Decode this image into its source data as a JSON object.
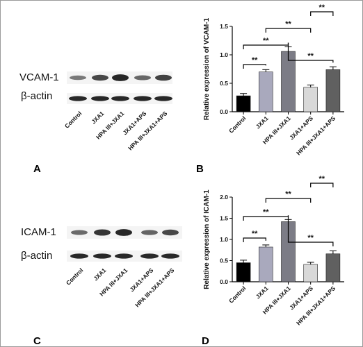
{
  "panels": {
    "a": {
      "letter": "A",
      "band1": "VCAM-1",
      "band2": "β-actin",
      "lanes": [
        "Control",
        "JXA1",
        "HPA III+JXA1",
        "JXA1+APS",
        "HPA III+JXA1+APS"
      ],
      "band1_intensity": [
        0.28,
        0.68,
        0.95,
        0.42,
        0.72
      ],
      "band2_intensity": [
        0.85,
        0.85,
        0.85,
        0.85,
        0.85
      ]
    },
    "c": {
      "letter": "C",
      "band1": "ICAM-1",
      "band2": "β-actin",
      "lanes": [
        "Control",
        "JXA1",
        "HPA III+JXA1",
        "JXA1+APS",
        "HPA III+JXA1+APS"
      ],
      "band1_intensity": [
        0.4,
        0.82,
        0.95,
        0.45,
        0.68
      ],
      "band2_intensity": [
        0.85,
        0.85,
        0.85,
        0.85,
        0.85
      ]
    },
    "b": {
      "letter": "B"
    },
    "d": {
      "letter": "D"
    }
  },
  "chart_data": [
    {
      "type": "bar",
      "categories": [
        "Control",
        "JXA1",
        "HPA III+JXA1",
        "JXA1+APS",
        "HPA III+JXA1+APS"
      ],
      "values": [
        0.28,
        0.7,
        1.06,
        0.43,
        0.74
      ],
      "errors": [
        0.04,
        0.04,
        0.08,
        0.04,
        0.05
      ],
      "colors": [
        "#000000",
        "#a9a9bd",
        "#7c7c86",
        "#d8d8d8",
        "#606060"
      ],
      "ylabel": "Relative expression of VCAM-1",
      "ylim": [
        0,
        1.5
      ],
      "yticks": [
        "0.0",
        "0.5",
        "1.0",
        "1.5"
      ],
      "significance": [
        {
          "from": "Control",
          "to": "JXA1",
          "label": "**"
        },
        {
          "from": "Control",
          "to": "HPA III+JXA1",
          "label": "**"
        },
        {
          "from": "JXA1",
          "to": "JXA1+APS",
          "label": "**"
        },
        {
          "from": "HPA III+JXA1",
          "to": "HPA III+JXA1+APS",
          "label": "**"
        },
        {
          "from": "JXA1+APS",
          "to": "HPA III+JXA1+APS",
          "label": "**"
        }
      ]
    },
    {
      "type": "bar",
      "categories": [
        "Control",
        "JXA1",
        "HPA III+JXA1",
        "JXA1+APS",
        "HPA III+JXA1+APS"
      ],
      "values": [
        0.45,
        0.82,
        1.42,
        0.41,
        0.66
      ],
      "errors": [
        0.06,
        0.05,
        0.05,
        0.05,
        0.07
      ],
      "colors": [
        "#000000",
        "#a9a9bd",
        "#7c7c86",
        "#d8d8d8",
        "#606060"
      ],
      "ylabel": "Relative expression of ICAM-1",
      "ylim": [
        0,
        2.0
      ],
      "yticks": [
        "0.0",
        "0.5",
        "1.0",
        "1.5",
        "2.0"
      ],
      "significance": [
        {
          "from": "Control",
          "to": "JXA1",
          "label": "**"
        },
        {
          "from": "Control",
          "to": "HPA III+JXA1",
          "label": "**"
        },
        {
          "from": "JXA1",
          "to": "JXA1+APS",
          "label": "**"
        },
        {
          "from": "HPA III+JXA1",
          "to": "HPA III+JXA1+APS",
          "label": "**"
        },
        {
          "from": "JXA1+APS",
          "to": "HPA III+JXA1+APS",
          "label": "**"
        }
      ]
    }
  ]
}
